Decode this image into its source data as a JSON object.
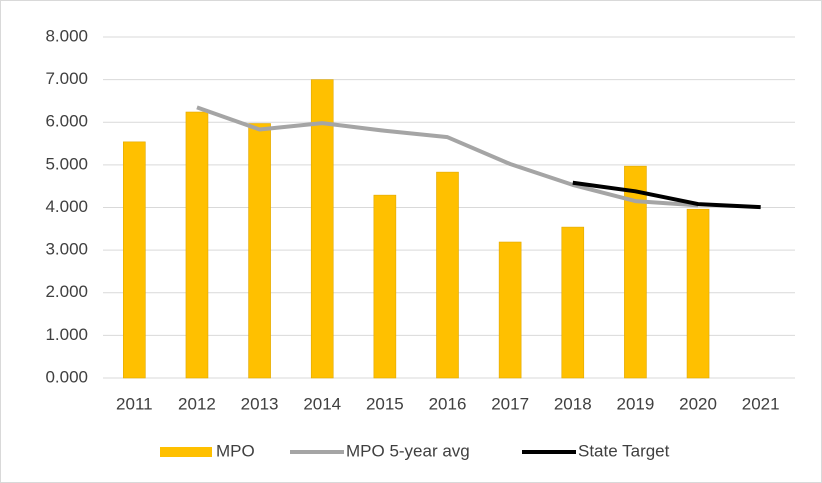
{
  "chart_data": {
    "type": "bar",
    "categories": [
      "2011",
      "2012",
      "2013",
      "2014",
      "2015",
      "2016",
      "2017",
      "2018",
      "2019",
      "2020",
      "2021"
    ],
    "series": [
      {
        "name": "MPO",
        "type": "bar",
        "color": "#ffc000",
        "values": [
          5.54,
          6.24,
          5.97,
          7.0,
          4.29,
          4.83,
          3.19,
          3.54,
          4.97,
          3.96,
          null
        ]
      },
      {
        "name": "MPO 5-year avg",
        "type": "line",
        "color": "#a5a5a5",
        "values": [
          null,
          6.35,
          5.83,
          5.98,
          5.8,
          5.65,
          5.02,
          4.53,
          4.15,
          4.05,
          null
        ]
      },
      {
        "name": "State Target",
        "type": "line",
        "color": "#000000",
        "values": [
          null,
          null,
          null,
          null,
          null,
          null,
          null,
          4.58,
          4.38,
          4.08,
          4.01
        ]
      }
    ],
    "ylim": [
      0,
      8
    ],
    "yticks": [
      {
        "value": 0,
        "label": "0.000"
      },
      {
        "value": 1,
        "label": "1.000"
      },
      {
        "value": 2,
        "label": "2.000"
      },
      {
        "value": 3,
        "label": "3.000"
      },
      {
        "value": 4,
        "label": "4.000"
      },
      {
        "value": 5,
        "label": "5.000"
      },
      {
        "value": 6,
        "label": "6.000"
      },
      {
        "value": 7,
        "label": "7.000"
      },
      {
        "value": 8,
        "label": "8.000"
      }
    ],
    "grid": true,
    "legend": "bottom"
  }
}
